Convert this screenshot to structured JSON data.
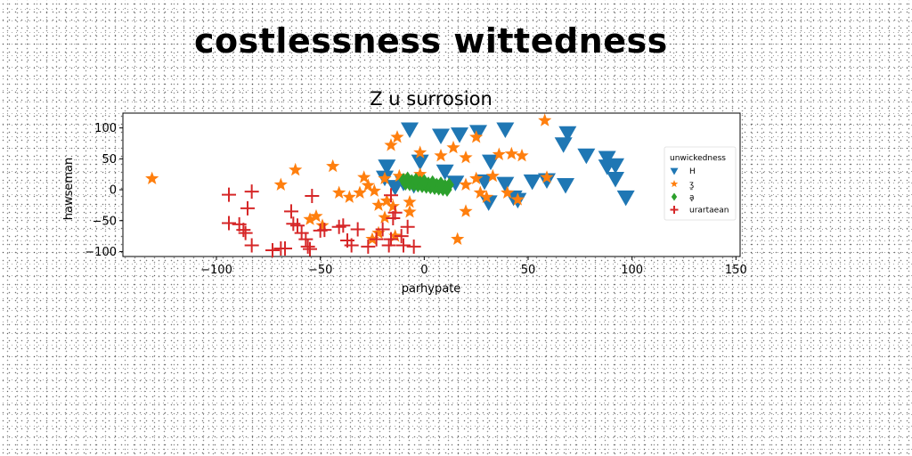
{
  "page_title": "costlessness wittedness",
  "chart_data": {
    "type": "scatter",
    "title": "Z u surrosion",
    "xlabel": "parhypate",
    "ylabel": "hawseman",
    "xlim": [
      -145,
      152
    ],
    "ylim": [
      -108,
      124
    ],
    "xticks": [
      -100,
      -50,
      0,
      50,
      100,
      150
    ],
    "yticks": [
      -100,
      -50,
      0,
      50,
      100
    ],
    "xtick_labels": [
      "−100",
      "−50",
      "0",
      "50",
      "100",
      "150"
    ],
    "ytick_labels": [
      "−100",
      "−50",
      "0",
      "50",
      "100"
    ],
    "grid": false,
    "legend": {
      "title": "unwickedness",
      "placement": "right"
    },
    "series": [
      {
        "name": "H",
        "marker": "triangle-down",
        "color": "#1f77b4",
        "points": [
          [
            -7,
            98
          ],
          [
            -2,
            46
          ],
          [
            8,
            88
          ],
          [
            17,
            90
          ],
          [
            26,
            94
          ],
          [
            39,
            98
          ],
          [
            69,
            92
          ],
          [
            67,
            74
          ],
          [
            78,
            56
          ],
          [
            88,
            52
          ],
          [
            92,
            40
          ],
          [
            -18,
            38
          ],
          [
            -19,
            20
          ],
          [
            -10,
            12
          ],
          [
            -5,
            8
          ],
          [
            10,
            30
          ],
          [
            15,
            12
          ],
          [
            29,
            14
          ],
          [
            32,
            46
          ],
          [
            39,
            10
          ],
          [
            43,
            -12
          ],
          [
            45,
            -16
          ],
          [
            52,
            14
          ],
          [
            59,
            16
          ],
          [
            68,
            8
          ],
          [
            88,
            38
          ],
          [
            92,
            18
          ],
          [
            97,
            -12
          ],
          [
            31,
            -20
          ],
          [
            -14,
            5
          ]
        ]
      },
      {
        "name": "ʒ̱",
        "marker": "star",
        "color": "#ff7f0e",
        "points": [
          [
            -131,
            18
          ],
          [
            -69,
            8
          ],
          [
            -62,
            32
          ],
          [
            -44,
            38
          ],
          [
            -29,
            20
          ],
          [
            -27,
            7
          ],
          [
            -31,
            -5
          ],
          [
            -41,
            -5
          ],
          [
            -36,
            -12
          ],
          [
            -24,
            -2
          ],
          [
            -18,
            -18
          ],
          [
            -15,
            -27
          ],
          [
            -22,
            -25
          ],
          [
            -13,
            85
          ],
          [
            -16,
            72
          ],
          [
            -19,
            18
          ],
          [
            -12,
            22
          ],
          [
            -2,
            25
          ],
          [
            -7,
            -20
          ],
          [
            -7,
            -36
          ],
          [
            -19,
            -45
          ],
          [
            -22,
            -70
          ],
          [
            -25,
            -80
          ],
          [
            -14,
            -75
          ],
          [
            -2,
            60
          ],
          [
            8,
            55
          ],
          [
            14,
            68
          ],
          [
            20,
            52
          ],
          [
            25,
            85
          ],
          [
            20,
            -35
          ],
          [
            16,
            -80
          ],
          [
            20,
            8
          ],
          [
            25,
            18
          ],
          [
            27,
            -5
          ],
          [
            30,
            -12
          ],
          [
            33,
            22
          ],
          [
            36,
            57
          ],
          [
            40,
            -5
          ],
          [
            42,
            58
          ],
          [
            45,
            -16
          ],
          [
            47,
            55
          ],
          [
            58,
            112
          ],
          [
            59,
            20
          ],
          [
            -55,
            -48
          ],
          [
            -52,
            -43
          ],
          [
            -49,
            -58
          ]
        ]
      },
      {
        "name": "ḁ",
        "marker": "diamond",
        "color": "#2ca02c",
        "points": [
          [
            -10,
            16
          ],
          [
            -8,
            15
          ],
          [
            -6,
            14
          ],
          [
            -4,
            13
          ],
          [
            -2,
            12
          ],
          [
            0,
            11
          ],
          [
            2,
            10
          ],
          [
            4,
            9
          ],
          [
            6,
            8
          ],
          [
            8,
            7
          ],
          [
            10,
            6
          ],
          [
            -9,
            10
          ],
          [
            -7,
            9
          ],
          [
            -5,
            8
          ],
          [
            -3,
            7
          ],
          [
            -1,
            6
          ],
          [
            1,
            5
          ],
          [
            3,
            4
          ],
          [
            5,
            3
          ],
          [
            7,
            2
          ],
          [
            9,
            1
          ],
          [
            11,
            0
          ],
          [
            -8,
            18
          ],
          [
            -4,
            16
          ],
          [
            0,
            14
          ],
          [
            4,
            12
          ],
          [
            8,
            10
          ],
          [
            12,
            8
          ]
        ]
      },
      {
        "name": "urartaean",
        "marker": "plus",
        "color": "#d62728",
        "points": [
          [
            -94,
            -8
          ],
          [
            -83,
            -3
          ],
          [
            -94,
            -54
          ],
          [
            -89,
            -56
          ],
          [
            -87,
            -65
          ],
          [
            -86,
            -70
          ],
          [
            -85,
            -30
          ],
          [
            -83,
            -90
          ],
          [
            -73,
            -98
          ],
          [
            -69,
            -95
          ],
          [
            -67,
            -95
          ],
          [
            -64,
            -35
          ],
          [
            -63,
            -55
          ],
          [
            -61,
            -58
          ],
          [
            -59,
            -70
          ],
          [
            -57,
            -80
          ],
          [
            -56,
            -92
          ],
          [
            -55,
            -96
          ],
          [
            -54,
            -10
          ],
          [
            -50,
            -66
          ],
          [
            -48,
            -65
          ],
          [
            -41,
            -60
          ],
          [
            -39,
            -58
          ],
          [
            -37,
            -82
          ],
          [
            -35,
            -90
          ],
          [
            -32,
            -64
          ],
          [
            -27,
            -92
          ],
          [
            -23,
            -80
          ],
          [
            -20,
            -64
          ],
          [
            -17,
            -90
          ],
          [
            -16,
            -80
          ],
          [
            -15,
            -46
          ],
          [
            -14,
            -37
          ],
          [
            -11,
            -75
          ],
          [
            -10,
            -90
          ],
          [
            -8,
            -60
          ],
          [
            -5,
            -92
          ],
          [
            -16,
            -9
          ]
        ]
      }
    ]
  }
}
